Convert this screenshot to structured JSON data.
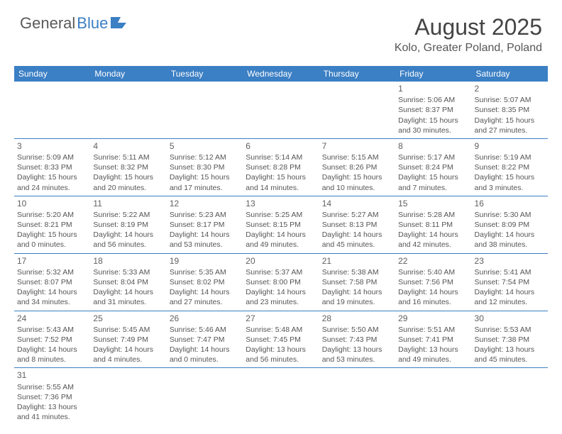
{
  "logo": {
    "text1": "General",
    "text2": "Blue"
  },
  "title": "August 2025",
  "location": "Kolo, Greater Poland, Poland",
  "colors": {
    "header_bg": "#3b7fc4",
    "header_text": "#ffffff",
    "border": "#3b7fc4",
    "text": "#555555",
    "title_text": "#444444"
  },
  "days_of_week": [
    "Sunday",
    "Monday",
    "Tuesday",
    "Wednesday",
    "Thursday",
    "Friday",
    "Saturday"
  ],
  "weeks": [
    [
      null,
      null,
      null,
      null,
      null,
      {
        "n": "1",
        "sunrise": "Sunrise: 5:06 AM",
        "sunset": "Sunset: 8:37 PM",
        "day1": "Daylight: 15 hours",
        "day2": "and 30 minutes."
      },
      {
        "n": "2",
        "sunrise": "Sunrise: 5:07 AM",
        "sunset": "Sunset: 8:35 PM",
        "day1": "Daylight: 15 hours",
        "day2": "and 27 minutes."
      }
    ],
    [
      {
        "n": "3",
        "sunrise": "Sunrise: 5:09 AM",
        "sunset": "Sunset: 8:33 PM",
        "day1": "Daylight: 15 hours",
        "day2": "and 24 minutes."
      },
      {
        "n": "4",
        "sunrise": "Sunrise: 5:11 AM",
        "sunset": "Sunset: 8:32 PM",
        "day1": "Daylight: 15 hours",
        "day2": "and 20 minutes."
      },
      {
        "n": "5",
        "sunrise": "Sunrise: 5:12 AM",
        "sunset": "Sunset: 8:30 PM",
        "day1": "Daylight: 15 hours",
        "day2": "and 17 minutes."
      },
      {
        "n": "6",
        "sunrise": "Sunrise: 5:14 AM",
        "sunset": "Sunset: 8:28 PM",
        "day1": "Daylight: 15 hours",
        "day2": "and 14 minutes."
      },
      {
        "n": "7",
        "sunrise": "Sunrise: 5:15 AM",
        "sunset": "Sunset: 8:26 PM",
        "day1": "Daylight: 15 hours",
        "day2": "and 10 minutes."
      },
      {
        "n": "8",
        "sunrise": "Sunrise: 5:17 AM",
        "sunset": "Sunset: 8:24 PM",
        "day1": "Daylight: 15 hours",
        "day2": "and 7 minutes."
      },
      {
        "n": "9",
        "sunrise": "Sunrise: 5:19 AM",
        "sunset": "Sunset: 8:22 PM",
        "day1": "Daylight: 15 hours",
        "day2": "and 3 minutes."
      }
    ],
    [
      {
        "n": "10",
        "sunrise": "Sunrise: 5:20 AM",
        "sunset": "Sunset: 8:21 PM",
        "day1": "Daylight: 15 hours",
        "day2": "and 0 minutes."
      },
      {
        "n": "11",
        "sunrise": "Sunrise: 5:22 AM",
        "sunset": "Sunset: 8:19 PM",
        "day1": "Daylight: 14 hours",
        "day2": "and 56 minutes."
      },
      {
        "n": "12",
        "sunrise": "Sunrise: 5:23 AM",
        "sunset": "Sunset: 8:17 PM",
        "day1": "Daylight: 14 hours",
        "day2": "and 53 minutes."
      },
      {
        "n": "13",
        "sunrise": "Sunrise: 5:25 AM",
        "sunset": "Sunset: 8:15 PM",
        "day1": "Daylight: 14 hours",
        "day2": "and 49 minutes."
      },
      {
        "n": "14",
        "sunrise": "Sunrise: 5:27 AM",
        "sunset": "Sunset: 8:13 PM",
        "day1": "Daylight: 14 hours",
        "day2": "and 45 minutes."
      },
      {
        "n": "15",
        "sunrise": "Sunrise: 5:28 AM",
        "sunset": "Sunset: 8:11 PM",
        "day1": "Daylight: 14 hours",
        "day2": "and 42 minutes."
      },
      {
        "n": "16",
        "sunrise": "Sunrise: 5:30 AM",
        "sunset": "Sunset: 8:09 PM",
        "day1": "Daylight: 14 hours",
        "day2": "and 38 minutes."
      }
    ],
    [
      {
        "n": "17",
        "sunrise": "Sunrise: 5:32 AM",
        "sunset": "Sunset: 8:07 PM",
        "day1": "Daylight: 14 hours",
        "day2": "and 34 minutes."
      },
      {
        "n": "18",
        "sunrise": "Sunrise: 5:33 AM",
        "sunset": "Sunset: 8:04 PM",
        "day1": "Daylight: 14 hours",
        "day2": "and 31 minutes."
      },
      {
        "n": "19",
        "sunrise": "Sunrise: 5:35 AM",
        "sunset": "Sunset: 8:02 PM",
        "day1": "Daylight: 14 hours",
        "day2": "and 27 minutes."
      },
      {
        "n": "20",
        "sunrise": "Sunrise: 5:37 AM",
        "sunset": "Sunset: 8:00 PM",
        "day1": "Daylight: 14 hours",
        "day2": "and 23 minutes."
      },
      {
        "n": "21",
        "sunrise": "Sunrise: 5:38 AM",
        "sunset": "Sunset: 7:58 PM",
        "day1": "Daylight: 14 hours",
        "day2": "and 19 minutes."
      },
      {
        "n": "22",
        "sunrise": "Sunrise: 5:40 AM",
        "sunset": "Sunset: 7:56 PM",
        "day1": "Daylight: 14 hours",
        "day2": "and 16 minutes."
      },
      {
        "n": "23",
        "sunrise": "Sunrise: 5:41 AM",
        "sunset": "Sunset: 7:54 PM",
        "day1": "Daylight: 14 hours",
        "day2": "and 12 minutes."
      }
    ],
    [
      {
        "n": "24",
        "sunrise": "Sunrise: 5:43 AM",
        "sunset": "Sunset: 7:52 PM",
        "day1": "Daylight: 14 hours",
        "day2": "and 8 minutes."
      },
      {
        "n": "25",
        "sunrise": "Sunrise: 5:45 AM",
        "sunset": "Sunset: 7:49 PM",
        "day1": "Daylight: 14 hours",
        "day2": "and 4 minutes."
      },
      {
        "n": "26",
        "sunrise": "Sunrise: 5:46 AM",
        "sunset": "Sunset: 7:47 PM",
        "day1": "Daylight: 14 hours",
        "day2": "and 0 minutes."
      },
      {
        "n": "27",
        "sunrise": "Sunrise: 5:48 AM",
        "sunset": "Sunset: 7:45 PM",
        "day1": "Daylight: 13 hours",
        "day2": "and 56 minutes."
      },
      {
        "n": "28",
        "sunrise": "Sunrise: 5:50 AM",
        "sunset": "Sunset: 7:43 PM",
        "day1": "Daylight: 13 hours",
        "day2": "and 53 minutes."
      },
      {
        "n": "29",
        "sunrise": "Sunrise: 5:51 AM",
        "sunset": "Sunset: 7:41 PM",
        "day1": "Daylight: 13 hours",
        "day2": "and 49 minutes."
      },
      {
        "n": "30",
        "sunrise": "Sunrise: 5:53 AM",
        "sunset": "Sunset: 7:38 PM",
        "day1": "Daylight: 13 hours",
        "day2": "and 45 minutes."
      }
    ],
    [
      {
        "n": "31",
        "sunrise": "Sunrise: 5:55 AM",
        "sunset": "Sunset: 7:36 PM",
        "day1": "Daylight: 13 hours",
        "day2": "and 41 minutes."
      },
      null,
      null,
      null,
      null,
      null,
      null
    ]
  ]
}
